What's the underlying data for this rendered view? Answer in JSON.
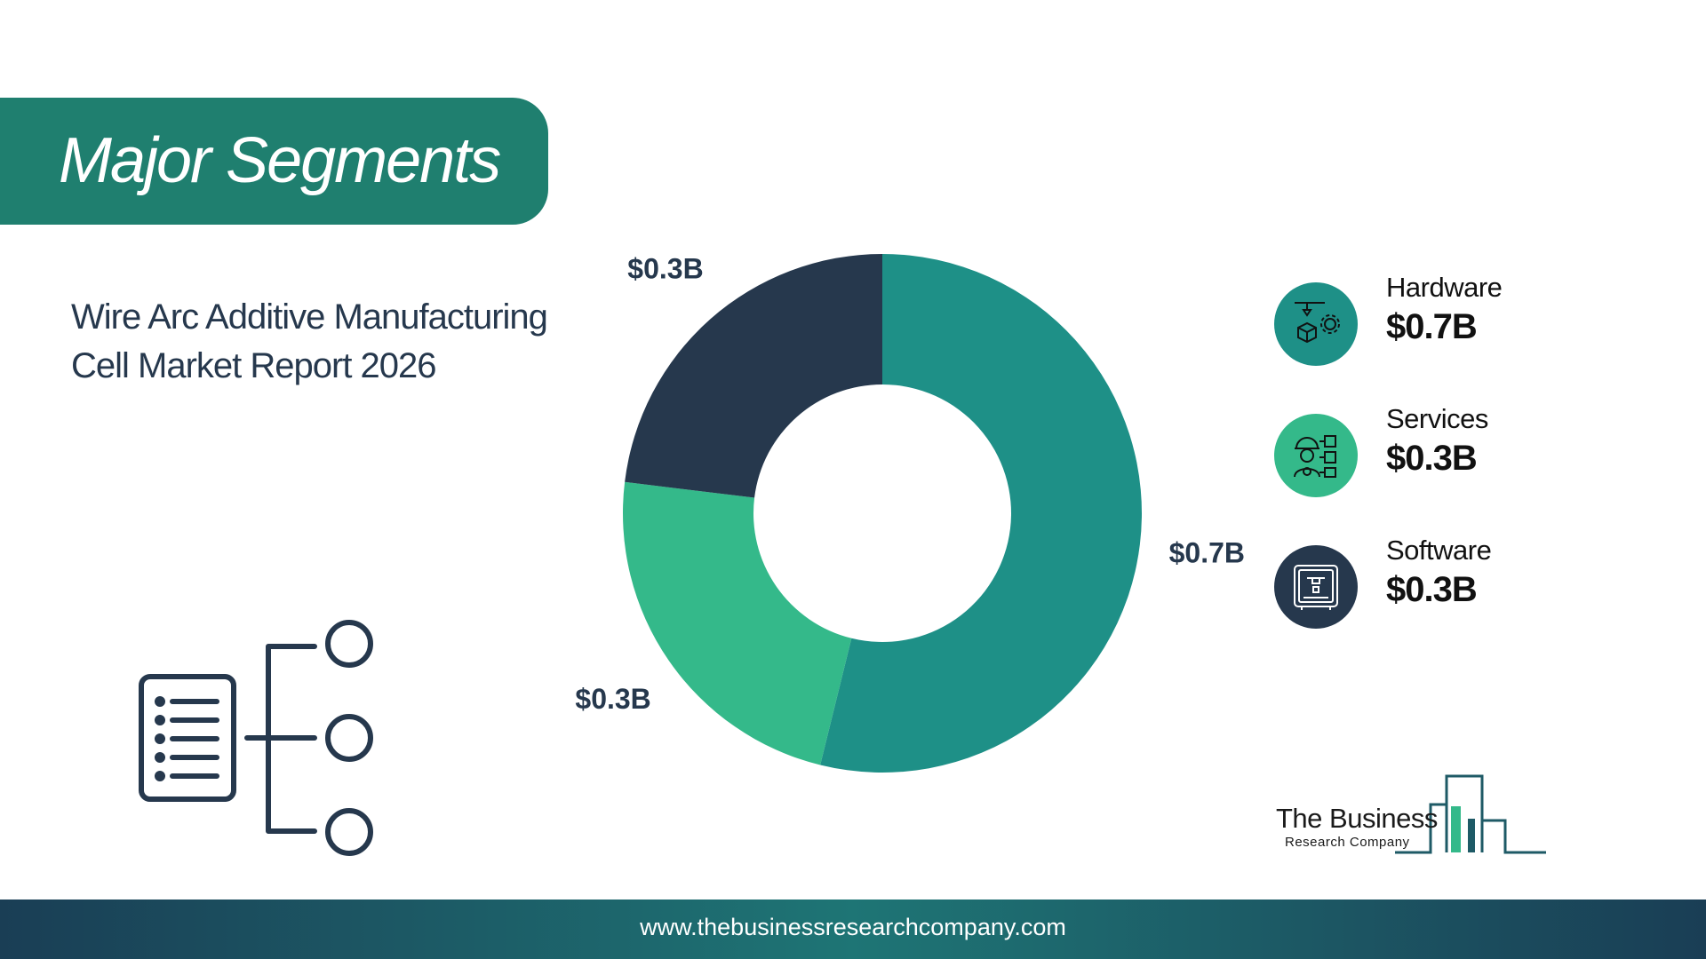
{
  "header": {
    "title": "Major Segments"
  },
  "report": {
    "line1": "Wire Arc Additive Manufacturing",
    "line2": "Cell Market Report 2026"
  },
  "chart_data": {
    "type": "pie",
    "variant": "donut",
    "categories": [
      "Hardware",
      "Services",
      "Software"
    ],
    "values": [
      0.7,
      0.3,
      0.3
    ],
    "value_labels": [
      "$0.7B",
      "$0.3B",
      "$0.3B"
    ],
    "colors": [
      "#1e9087",
      "#34b98a",
      "#26384d"
    ],
    "legend_placement": "right"
  },
  "legend": [
    {
      "name": "Hardware",
      "value": "$0.7B",
      "color": "#1e9087",
      "icon": "3d-printer-gear-icon"
    },
    {
      "name": "Services",
      "value": "$0.3B",
      "color": "#34b98a",
      "icon": "worker-service-icon"
    },
    {
      "name": "Software",
      "value": "$0.3B",
      "color": "#26384d",
      "icon": "printer-screen-icon"
    }
  ],
  "logo": {
    "line1": "The Business",
    "line2": "Research Company"
  },
  "footer": {
    "url": "www.thebusinessresearchcompany.com"
  }
}
